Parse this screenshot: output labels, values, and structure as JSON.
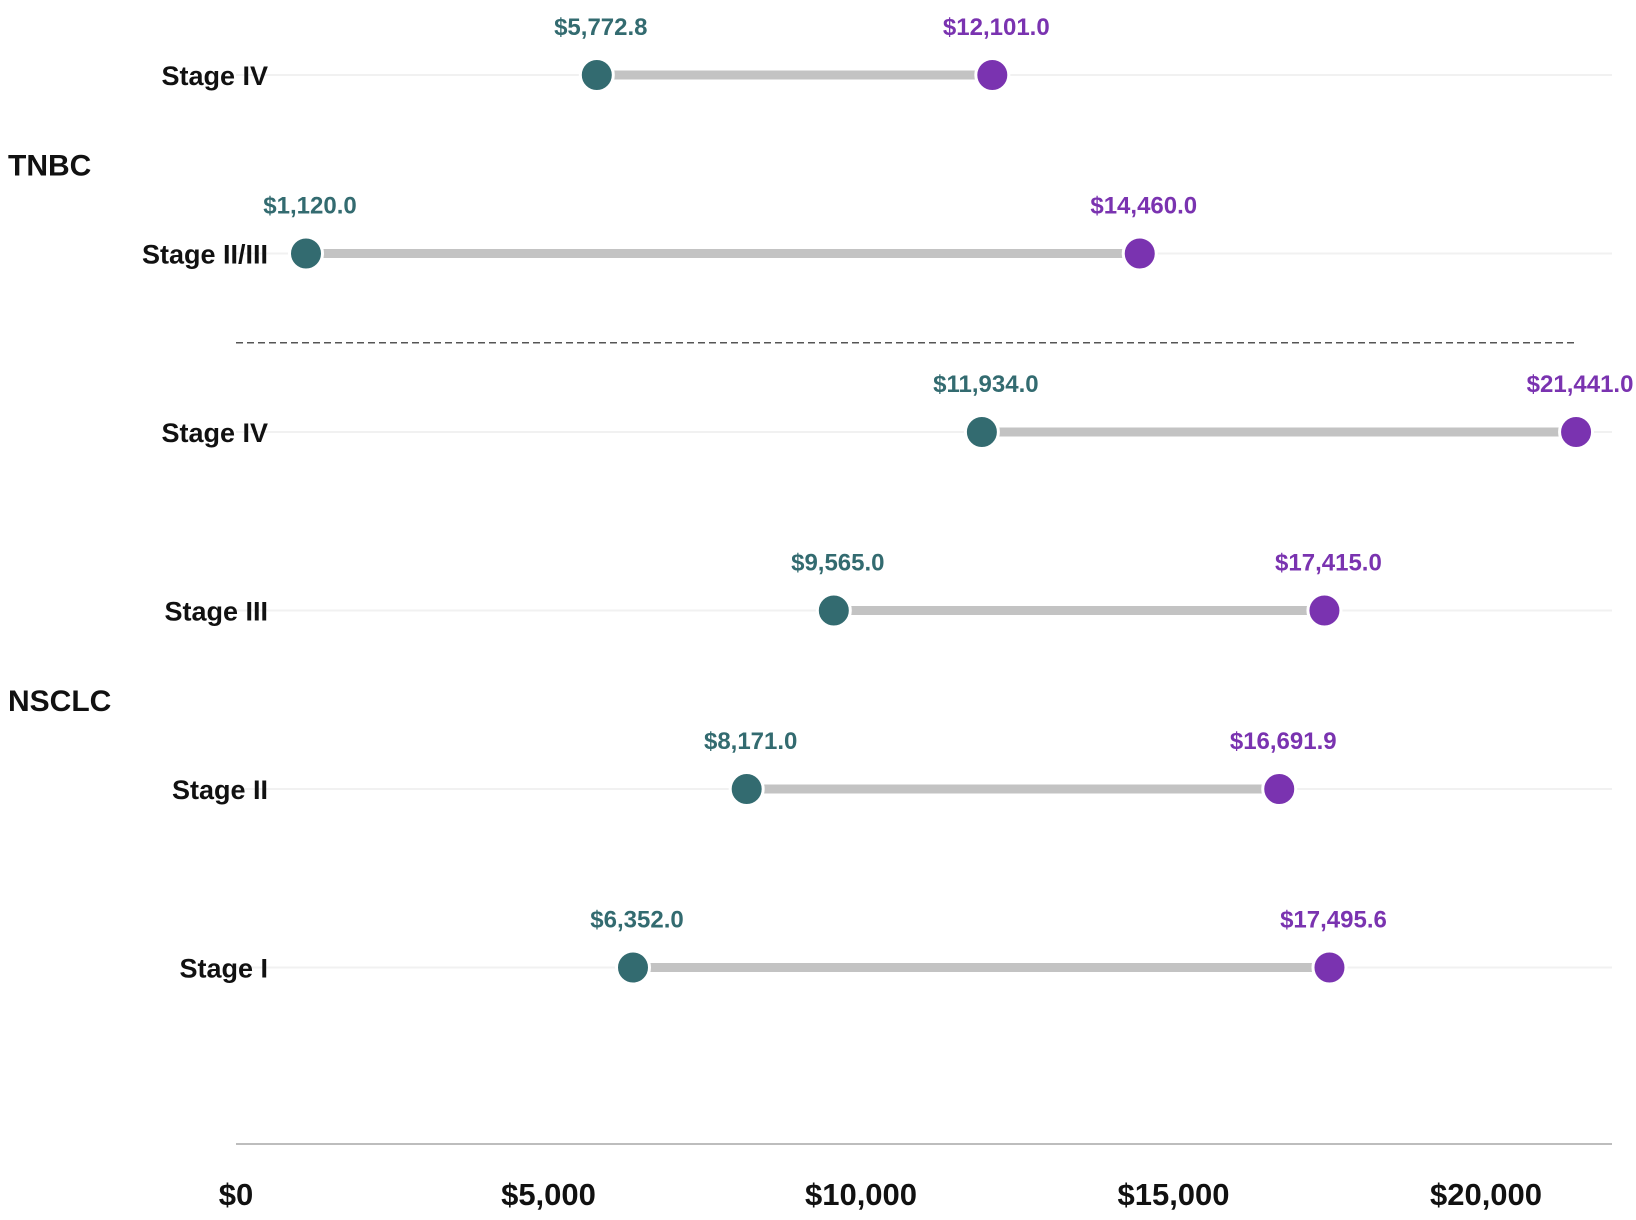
{
  "colors": {
    "low": "#336b70",
    "high": "#7a33b0",
    "connector": "#c3c3c3",
    "gridline": "#f1f1f1",
    "axis": "#bdbdbd",
    "divider": "#555555"
  },
  "chart_data": {
    "type": "dumbbell",
    "title": "",
    "xlabel": "",
    "ylabel": "",
    "xlim": [
      0,
      22000
    ],
    "x_ticks": [
      0,
      5000,
      10000,
      15000,
      20000
    ],
    "x_tick_labels": [
      "$0",
      "$5,000",
      "$10,000",
      "$15,000",
      "$20,000"
    ],
    "groups": [
      {
        "name": "TNBC",
        "rows": [
          {
            "label": "Stage IV",
            "low": 5772.8,
            "low_label": "$5,772.8",
            "high": 12101.0,
            "high_label": "$12,101.0"
          },
          {
            "label": "Stage II/III",
            "low": 1120.0,
            "low_label": "$1,120.0",
            "high": 14460.0,
            "high_label": "$14,460.0"
          }
        ]
      },
      {
        "name": "NSCLC",
        "rows": [
          {
            "label": "Stage IV",
            "low": 11934.0,
            "low_label": "$11,934.0",
            "high": 21441.0,
            "high_label": "$21,441.0"
          },
          {
            "label": "Stage III",
            "low": 9565.0,
            "low_label": "$9,565.0",
            "high": 17415.0,
            "high_label": "$17,415.0"
          },
          {
            "label": "Stage II",
            "low": 8171.0,
            "low_label": "$8,171.0",
            "high": 16691.9,
            "high_label": "$16,691.9"
          },
          {
            "label": "Stage I",
            "low": 6352.0,
            "low_label": "$6,352.0",
            "high": 17495.6,
            "high_label": "$17,495.6"
          }
        ]
      }
    ]
  }
}
